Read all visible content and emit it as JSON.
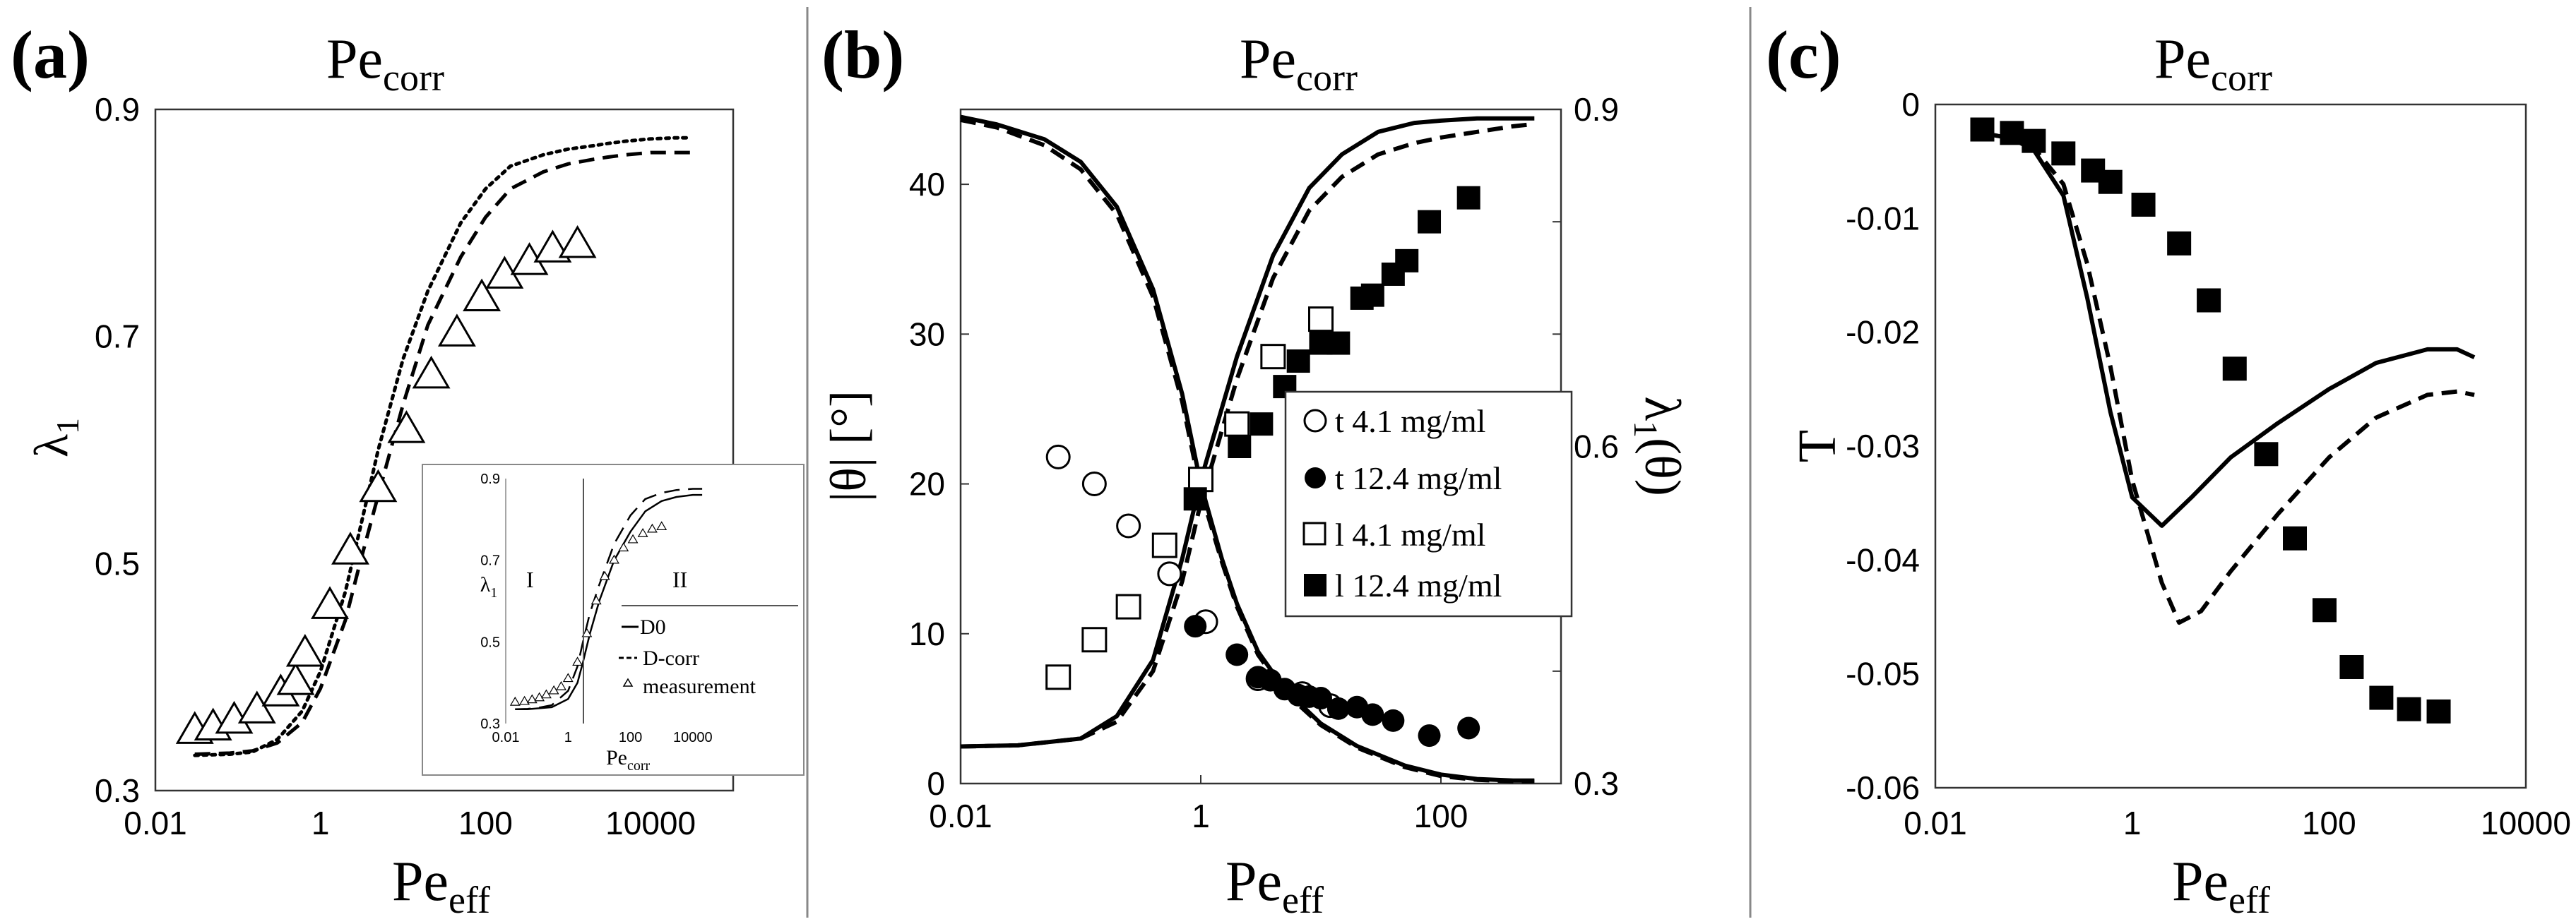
{
  "chart_data": [
    {
      "id": "a",
      "type": "line",
      "panel_label": "(a)",
      "title": "Pe_corr",
      "title_main": "Pe",
      "title_sub": "corr",
      "xlabel_main": "Pe",
      "xlabel_sub": "eff",
      "ylabel_main": "λ",
      "ylabel_sub": "1",
      "xscale": "log",
      "xlim": [
        0.01,
        100000
      ],
      "ylim": [
        0.3,
        0.9
      ],
      "xticks": [
        0.01,
        1,
        100,
        10000
      ],
      "xtick_labels": [
        "0.01",
        "1",
        "100",
        "10000"
      ],
      "yticks": [
        0.3,
        0.5,
        0.7,
        0.9
      ],
      "ytick_labels": [
        "0.3",
        "0.5",
        "0.7",
        "0.9"
      ],
      "series": [
        {
          "name": "dotted",
          "style": "dotted",
          "x": [
            0.03,
            0.08,
            0.15,
            0.3,
            0.6,
            1,
            2,
            3,
            5,
            10,
            20,
            50,
            100,
            200,
            500,
            1000,
            2000,
            3000,
            5000,
            10000,
            20000,
            30000
          ],
          "y": [
            0.331,
            0.332,
            0.334,
            0.345,
            0.37,
            0.405,
            0.475,
            0.53,
            0.6,
            0.68,
            0.74,
            0.8,
            0.83,
            0.85,
            0.86,
            0.865,
            0.868,
            0.87,
            0.872,
            0.874,
            0.875,
            0.875
          ]
        },
        {
          "name": "dashed",
          "style": "dashed",
          "x": [
            0.03,
            0.08,
            0.15,
            0.3,
            0.6,
            1,
            2,
            3,
            5,
            10,
            20,
            50,
            100,
            200,
            500,
            1000,
            2000,
            3000,
            5000,
            10000,
            20000,
            30000
          ],
          "y": [
            0.332,
            0.333,
            0.335,
            0.342,
            0.36,
            0.39,
            0.45,
            0.5,
            0.56,
            0.64,
            0.71,
            0.77,
            0.805,
            0.83,
            0.845,
            0.852,
            0.856,
            0.858,
            0.86,
            0.862,
            0.862,
            0.862
          ]
        },
        {
          "name": "measurement",
          "style": "triangle-marker",
          "x": [
            0.03,
            0.05,
            0.09,
            0.17,
            0.33,
            0.5,
            0.65,
            1.3,
            2.3,
            5,
            11,
            22,
            45,
            90,
            170,
            340,
            650,
            1300
          ],
          "y": [
            0.352,
            0.355,
            0.361,
            0.37,
            0.385,
            0.395,
            0.42,
            0.462,
            0.51,
            0.565,
            0.617,
            0.665,
            0.702,
            0.733,
            0.753,
            0.765,
            0.776,
            0.78
          ]
        }
      ],
      "inset": {
        "ylabel_main": "λ",
        "ylabel_sub": "1",
        "xlabel_main": "Pe",
        "xlabel_sub": "corr",
        "xscale": "log",
        "xlim": [
          0.01,
          100000
        ],
        "ylim": [
          0.3,
          0.9
        ],
        "xtick_labels": [
          "0.01",
          "1",
          "100",
          "10000"
        ],
        "ytick_labels": [
          "0.3",
          "0.5",
          "0.7",
          "0.9"
        ],
        "region_labels": [
          "I",
          "II"
        ],
        "legend": [
          "D0",
          "D-corr",
          "measurement"
        ],
        "series": [
          {
            "name": "D0",
            "style": "solid",
            "x": [
              0.02,
              0.05,
              0.1,
              0.3,
              1,
              2,
              3,
              5,
              10,
              30,
              100,
              300,
              1000,
              3000,
              10000,
              20000
            ],
            "y": [
              0.335,
              0.335,
              0.337,
              0.34,
              0.36,
              0.4,
              0.45,
              0.52,
              0.6,
              0.7,
              0.77,
              0.82,
              0.845,
              0.855,
              0.86,
              0.86
            ]
          },
          {
            "name": "D-corr",
            "style": "dashed",
            "x": [
              0.02,
              0.05,
              0.1,
              0.3,
              1,
              2,
              3,
              5,
              10,
              30,
              100,
              300,
              1000,
              3000,
              10000,
              20000
            ],
            "y": [
              0.335,
              0.336,
              0.338,
              0.345,
              0.38,
              0.44,
              0.5,
              0.57,
              0.64,
              0.74,
              0.81,
              0.85,
              0.865,
              0.872,
              0.875,
              0.875
            ]
          },
          {
            "name": "measurement",
            "style": "triangle-marker",
            "x": [
              0.02,
              0.04,
              0.07,
              0.12,
              0.2,
              0.35,
              0.6,
              1,
              2,
              4,
              8,
              15,
              30,
              60,
              120,
              250,
              500,
              1000
            ],
            "y": [
              0.352,
              0.354,
              0.358,
              0.363,
              0.37,
              0.38,
              0.39,
              0.41,
              0.45,
              0.52,
              0.6,
              0.66,
              0.7,
              0.73,
              0.75,
              0.765,
              0.776,
              0.782
            ]
          }
        ]
      }
    },
    {
      "id": "b",
      "type": "line",
      "panel_label": "(b)",
      "title": "Pe_corr",
      "title_main": "Pe",
      "title_sub": "corr",
      "xlabel_main": "Pe",
      "xlabel_sub": "eff",
      "ylabel_left": "|θ| [°]",
      "ylabel_right": "λ1(θ)",
      "ylabel_right_main": "λ",
      "ylabel_right_sub": "1",
      "ylabel_right_tail": "(θ)",
      "xscale": "log",
      "xlim": [
        0.01,
        1000
      ],
      "ylim_left": [
        0,
        45
      ],
      "ylim_right": [
        0.3,
        0.9
      ],
      "xticks": [
        0.01,
        1,
        100
      ],
      "xtick_labels": [
        "0.01",
        "1",
        "100"
      ],
      "yticks_left": [
        0,
        10,
        20,
        30,
        40
      ],
      "ytick_labels_left": [
        "0",
        "10",
        "20",
        "30",
        "40"
      ],
      "yticks_right": [
        0.3,
        0.6,
        0.9
      ],
      "ytick_labels_right": [
        "0.3",
        "0.6",
        "0.9"
      ],
      "series": [
        {
          "name": "theta solid",
          "axis": "left",
          "style": "solid",
          "x": [
            0.01,
            0.02,
            0.05,
            0.1,
            0.2,
            0.4,
            0.7,
            1,
            1.5,
            2,
            3,
            5,
            10,
            20,
            50,
            100,
            200,
            400,
            600
          ],
          "y": [
            44.5,
            44,
            43,
            41.5,
            38.5,
            33,
            26,
            20,
            15,
            12,
            8.8,
            6.3,
            4,
            2.5,
            1.2,
            0.6,
            0.3,
            0.2,
            0.2
          ]
        },
        {
          "name": "theta dashed",
          "axis": "left",
          "style": "dashed",
          "x": [
            0.01,
            0.02,
            0.05,
            0.1,
            0.2,
            0.4,
            0.7,
            1,
            1.5,
            2,
            3,
            5,
            10,
            20,
            50,
            100,
            200,
            400,
            600
          ],
          "y": [
            44.3,
            43.8,
            42.6,
            41,
            38,
            32.5,
            25.5,
            19.5,
            14.8,
            11.8,
            8.6,
            6.1,
            3.9,
            2.4,
            1.1,
            0.5,
            0.25,
            0.15,
            0.15
          ]
        },
        {
          "name": "lambda solid",
          "axis": "right",
          "style": "solid",
          "x": [
            0.01,
            0.03,
            0.1,
            0.2,
            0.4,
            0.7,
            1,
            2,
            4,
            8,
            15,
            30,
            60,
            100,
            200,
            400,
            600
          ],
          "y": [
            0.333,
            0.334,
            0.34,
            0.36,
            0.41,
            0.5,
            0.57,
            0.68,
            0.77,
            0.83,
            0.86,
            0.88,
            0.888,
            0.89,
            0.892,
            0.892,
            0.892
          ]
        },
        {
          "name": "lambda dashed",
          "axis": "right",
          "style": "dashed",
          "x": [
            0.01,
            0.03,
            0.1,
            0.2,
            0.4,
            0.7,
            1,
            2,
            4,
            8,
            15,
            30,
            60,
            100,
            200,
            400,
            600
          ],
          "y": [
            0.333,
            0.334,
            0.34,
            0.355,
            0.4,
            0.48,
            0.55,
            0.66,
            0.75,
            0.81,
            0.84,
            0.86,
            0.87,
            0.875,
            0.88,
            0.885,
            0.887
          ]
        },
        {
          "name": "t 4.1 mg/ml",
          "axis": "left",
          "style": "open-circle",
          "x": [
            0.065,
            0.13,
            0.25,
            0.55,
            1.1,
            3,
            7,
            12
          ],
          "y": [
            21.8,
            20,
            17.2,
            14,
            10.8,
            7,
            6,
            5.2
          ]
        },
        {
          "name": "t 12.4 mg/ml",
          "axis": "left",
          "style": "filled-circle",
          "x": [
            0.9,
            2,
            3,
            3.8,
            5,
            6.5,
            8,
            10,
            14,
            20,
            27,
            40,
            80,
            170
          ],
          "y": [
            10.5,
            8.6,
            7.1,
            6.9,
            6.3,
            5.9,
            5.8,
            5.7,
            5,
            5.1,
            4.6,
            4.2,
            3.2,
            3.7
          ]
        },
        {
          "name": "l 4.1 mg/ml",
          "axis": "left",
          "style": "open-square",
          "x": [
            0.065,
            0.13,
            0.25,
            0.5,
            1,
            2,
            4,
            10
          ],
          "y": [
            7.1,
            9.6,
            11.8,
            15.9,
            20.3,
            24,
            28.5,
            31
          ]
        },
        {
          "name": "l 12.4 mg/ml",
          "axis": "left",
          "style": "filled-square",
          "x": [
            0.9,
            2.1,
            3.2,
            5,
            6.5,
            10,
            14,
            22,
            27,
            40,
            52,
            80,
            170
          ],
          "y": [
            19,
            22.5,
            24,
            26.5,
            28.2,
            29.4,
            29.4,
            32.4,
            32.6,
            34,
            34.9,
            37.5,
            39.1
          ]
        }
      ],
      "legend": [
        "t 4.1 mg/ml",
        "t 12.4 mg/ml",
        "l 4.1 mg/ml",
        "l 12.4 mg/ml"
      ]
    },
    {
      "id": "c",
      "type": "line",
      "panel_label": "(c)",
      "title": "Pe_corr",
      "title_main": "Pe",
      "title_sub": "corr",
      "xlabel_main": "Pe",
      "xlabel_sub": "eff",
      "ylabel": "T",
      "xscale": "log",
      "xlim": [
        0.01,
        10000
      ],
      "ylim": [
        -0.06,
        0
      ],
      "xticks": [
        0.01,
        1,
        100,
        10000
      ],
      "xtick_labels": [
        "0.01",
        "1",
        "100",
        "10000"
      ],
      "yticks": [
        0,
        -0.01,
        -0.02,
        -0.03,
        -0.04,
        -0.05,
        -0.06
      ],
      "ytick_labels": [
        "0",
        "-0.01",
        "-0.02",
        "-0.03",
        "-0.04",
        "-0.05",
        "-0.06"
      ],
      "series": [
        {
          "name": "solid",
          "style": "solid",
          "x": [
            0.03,
            0.06,
            0.1,
            0.2,
            0.35,
            0.6,
            1,
            2,
            4,
            10,
            30,
            100,
            300,
            1000,
            2000,
            3000
          ],
          "y": [
            -0.0025,
            -0.003,
            -0.004,
            -0.008,
            -0.017,
            -0.027,
            -0.0345,
            -0.037,
            -0.0345,
            -0.031,
            -0.028,
            -0.025,
            -0.0227,
            -0.0215,
            -0.0215,
            -0.0222
          ]
        },
        {
          "name": "dashed",
          "style": "dashed",
          "x": [
            0.03,
            0.06,
            0.1,
            0.2,
            0.35,
            0.6,
            1,
            2,
            3,
            5,
            10,
            30,
            100,
            300,
            1000,
            2000,
            3000
          ],
          "y": [
            -0.0025,
            -0.003,
            -0.0038,
            -0.007,
            -0.014,
            -0.023,
            -0.033,
            -0.042,
            -0.0455,
            -0.0445,
            -0.041,
            -0.036,
            -0.031,
            -0.0275,
            -0.0255,
            -0.0252,
            -0.0255
          ]
        },
        {
          "name": "measurement",
          "style": "filled-square",
          "x": [
            0.03,
            0.06,
            0.1,
            0.2,
            0.4,
            0.6,
            1.3,
            3,
            6,
            11,
            23,
            45,
            90,
            170,
            340,
            650,
            1300
          ],
          "y": [
            -0.0022,
            -0.0025,
            -0.0032,
            -0.0043,
            -0.0058,
            -0.0068,
            -0.0088,
            -0.0122,
            -0.0172,
            -0.0232,
            -0.0307,
            -0.0381,
            -0.0444,
            -0.0494,
            -0.0521,
            -0.0531,
            -0.0533
          ]
        }
      ]
    }
  ]
}
